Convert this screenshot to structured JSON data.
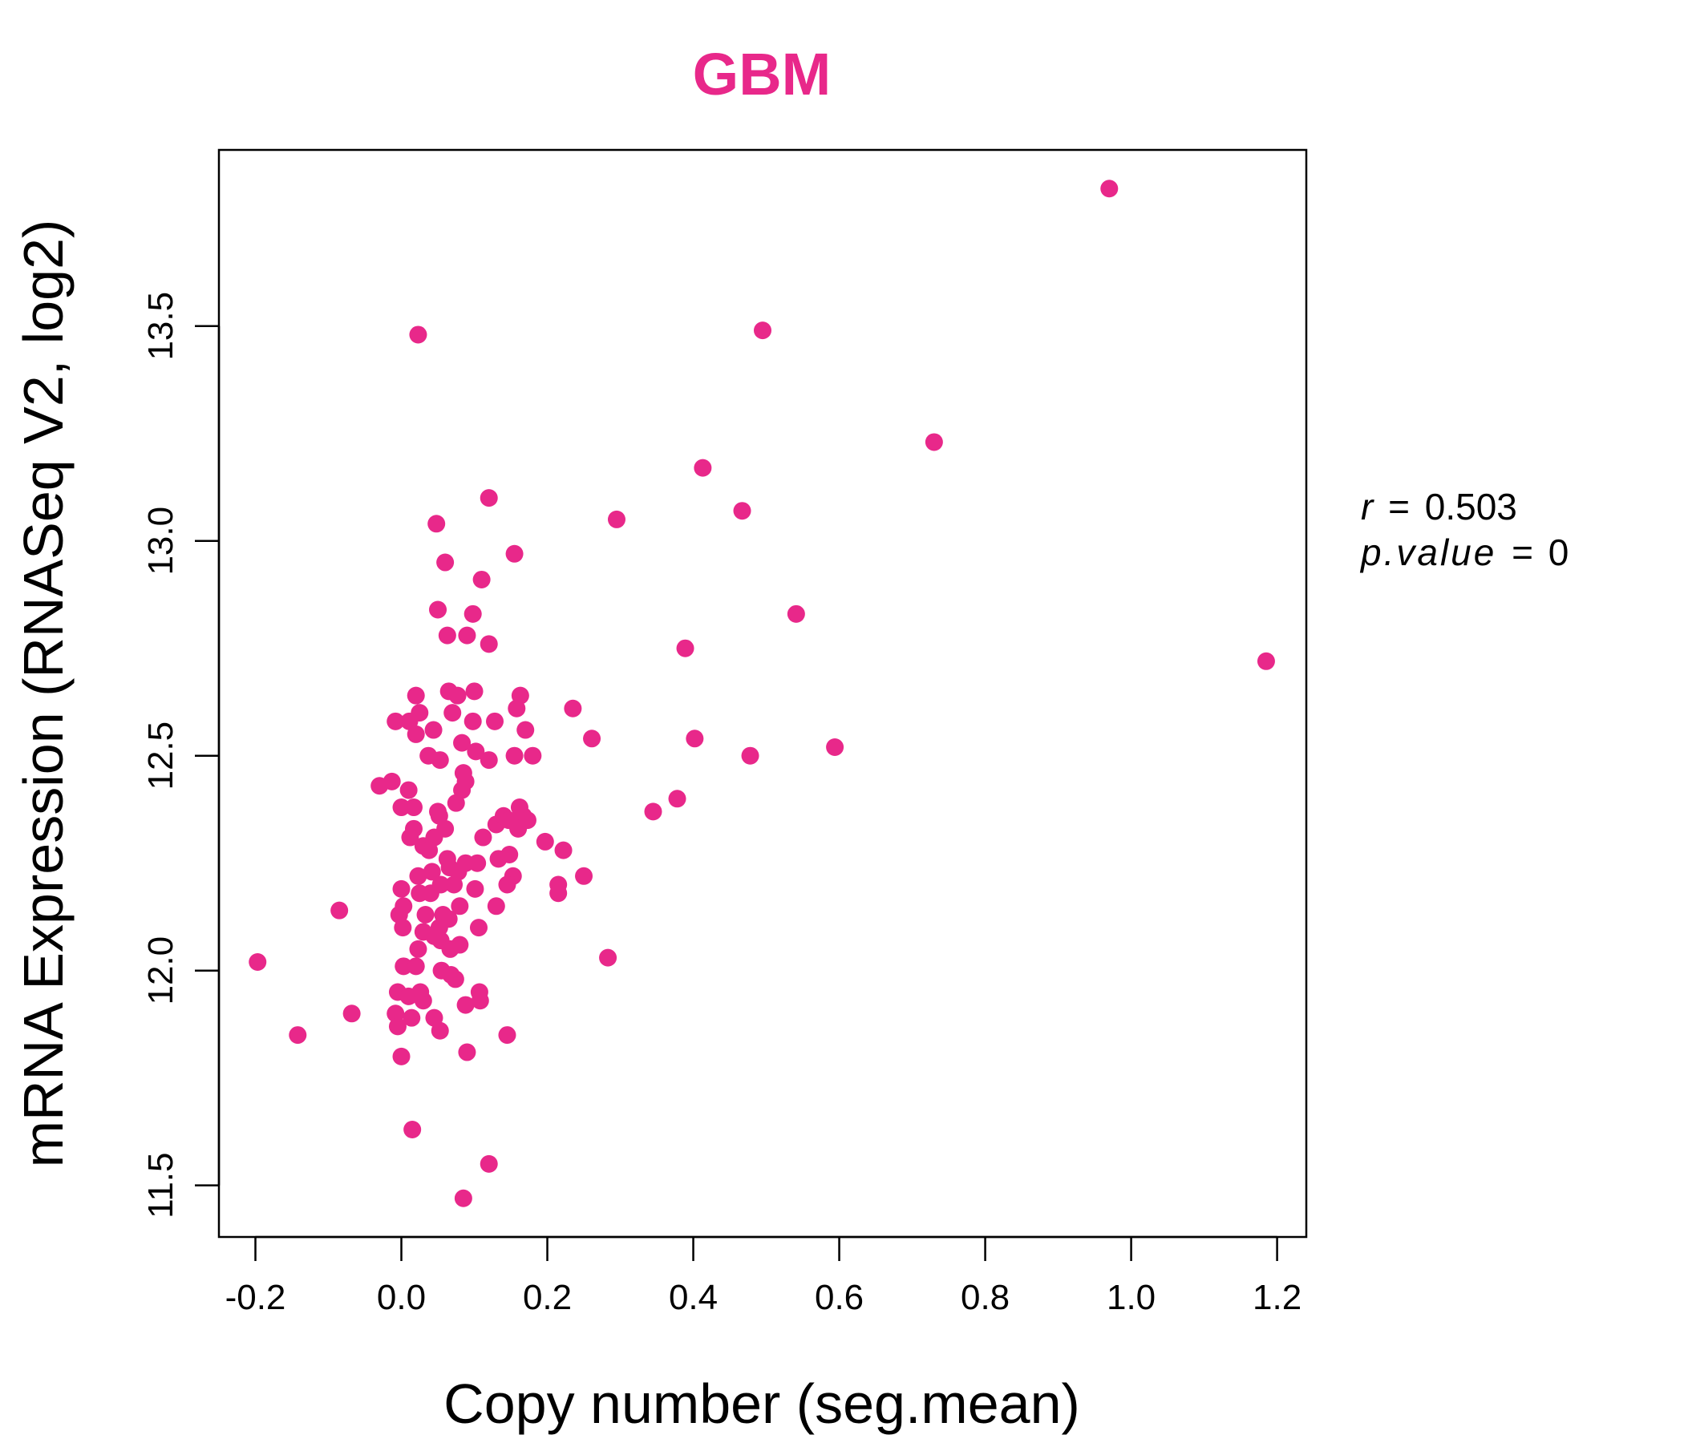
{
  "chart_data": {
    "type": "scatter",
    "title": "GBM",
    "xlabel": "Copy number (seg.mean)",
    "ylabel": "mRNA Expression (RNASeq V2, log2)",
    "xlim": [
      -0.25,
      1.24
    ],
    "ylim": [
      11.38,
      13.91
    ],
    "xticks": [
      -0.2,
      0.0,
      0.2,
      0.4,
      0.6,
      0.8,
      1.0,
      1.2
    ],
    "xtick_labels": [
      "-0.2",
      "0.0",
      "0.2",
      "0.4",
      "0.6",
      "0.8",
      "1.0",
      "1.2"
    ],
    "yticks": [
      11.5,
      12.0,
      12.5,
      13.0,
      13.5
    ],
    "ytick_labels": [
      "11.5",
      "12.0",
      "12.5",
      "13.0",
      "13.5"
    ],
    "grid": false,
    "point_color": "#E8288A",
    "annotations": {
      "r_name": "r",
      "r_value": "0.503",
      "p_name": "p.value",
      "p_value": "0",
      "equals": "="
    },
    "points": [
      [
        0.97,
        13.82
      ],
      [
        0.023,
        13.48
      ],
      [
        0.495,
        13.49
      ],
      [
        0.73,
        13.23
      ],
      [
        0.413,
        13.17
      ],
      [
        0.467,
        13.07
      ],
      [
        0.295,
        13.05
      ],
      [
        0.12,
        13.1
      ],
      [
        0.048,
        13.04
      ],
      [
        0.155,
        12.97
      ],
      [
        0.06,
        12.95
      ],
      [
        0.11,
        12.91
      ],
      [
        0.05,
        12.84
      ],
      [
        0.098,
        12.83
      ],
      [
        0.541,
        12.83
      ],
      [
        0.063,
        12.78
      ],
      [
        0.09,
        12.78
      ],
      [
        0.12,
        12.76
      ],
      [
        0.389,
        12.75
      ],
      [
        1.185,
        12.72
      ],
      [
        0.02,
        12.64
      ],
      [
        0.065,
        12.65
      ],
      [
        0.1,
        12.65
      ],
      [
        0.077,
        12.64
      ],
      [
        0.163,
        12.64
      ],
      [
        0.235,
        12.61
      ],
      [
        0.025,
        12.6
      ],
      [
        0.07,
        12.6
      ],
      [
        0.158,
        12.61
      ],
      [
        -0.008,
        12.58
      ],
      [
        0.011,
        12.58
      ],
      [
        0.098,
        12.58
      ],
      [
        0.128,
        12.58
      ],
      [
        0.044,
        12.56
      ],
      [
        0.17,
        12.56
      ],
      [
        0.02,
        12.55
      ],
      [
        0.261,
        12.54
      ],
      [
        0.402,
        12.54
      ],
      [
        0.594,
        12.52
      ],
      [
        0.083,
        12.53
      ],
      [
        0.102,
        12.51
      ],
      [
        0.037,
        12.5
      ],
      [
        0.053,
        12.49
      ],
      [
        0.12,
        12.49
      ],
      [
        0.155,
        12.5
      ],
      [
        0.18,
        12.5
      ],
      [
        0.478,
        12.5
      ],
      [
        0.085,
        12.46
      ],
      [
        0.088,
        12.44
      ],
      [
        -0.03,
        12.43
      ],
      [
        -0.013,
        12.44
      ],
      [
        0.01,
        12.42
      ],
      [
        0.083,
        12.42
      ],
      [
        0.075,
        12.39
      ],
      [
        0.0,
        12.38
      ],
      [
        0.017,
        12.38
      ],
      [
        0.05,
        12.37
      ],
      [
        0.052,
        12.36
      ],
      [
        0.378,
        12.4
      ],
      [
        0.345,
        12.37
      ],
      [
        0.13,
        12.34
      ],
      [
        0.14,
        12.36
      ],
      [
        0.147,
        12.35
      ],
      [
        0.162,
        12.38
      ],
      [
        0.167,
        12.36
      ],
      [
        0.173,
        12.35
      ],
      [
        0.16,
        12.33
      ],
      [
        0.017,
        12.33
      ],
      [
        0.06,
        12.33
      ],
      [
        0.012,
        12.31
      ],
      [
        0.045,
        12.31
      ],
      [
        0.112,
        12.31
      ],
      [
        0.197,
        12.3
      ],
      [
        0.03,
        12.29
      ],
      [
        0.038,
        12.28
      ],
      [
        0.222,
        12.28
      ],
      [
        0.133,
        12.26
      ],
      [
        0.148,
        12.27
      ],
      [
        0.063,
        12.26
      ],
      [
        0.066,
        12.24
      ],
      [
        0.088,
        12.25
      ],
      [
        0.104,
        12.25
      ],
      [
        0.042,
        12.23
      ],
      [
        0.078,
        12.23
      ],
      [
        0.023,
        12.22
      ],
      [
        0.153,
        12.22
      ],
      [
        0.25,
        12.22
      ],
      [
        0.054,
        12.2
      ],
      [
        0.072,
        12.2
      ],
      [
        0.101,
        12.19
      ],
      [
        0.145,
        12.2
      ],
      [
        0.215,
        12.2
      ],
      [
        0.215,
        12.18
      ],
      [
        0.0,
        12.19
      ],
      [
        0.025,
        12.18
      ],
      [
        0.04,
        12.18
      ],
      [
        0.003,
        12.15
      ],
      [
        0.08,
        12.15
      ],
      [
        0.13,
        12.15
      ],
      [
        -0.085,
        12.14
      ],
      [
        -0.003,
        12.13
      ],
      [
        0.033,
        12.13
      ],
      [
        0.057,
        12.13
      ],
      [
        0.065,
        12.12
      ],
      [
        0.002,
        12.1
      ],
      [
        0.052,
        12.1
      ],
      [
        0.106,
        12.1
      ],
      [
        0.03,
        12.09
      ],
      [
        0.045,
        12.08
      ],
      [
        0.054,
        12.07
      ],
      [
        0.08,
        12.06
      ],
      [
        0.023,
        12.05
      ],
      [
        0.067,
        12.05
      ],
      [
        0.283,
        12.03
      ],
      [
        -0.197,
        12.02
      ],
      [
        0.003,
        12.01
      ],
      [
        0.02,
        12.01
      ],
      [
        0.055,
        12.0
      ],
      [
        0.068,
        11.99
      ],
      [
        0.074,
        11.98
      ],
      [
        -0.005,
        11.95
      ],
      [
        0.01,
        11.94
      ],
      [
        0.026,
        11.95
      ],
      [
        0.03,
        11.93
      ],
      [
        0.107,
        11.95
      ],
      [
        0.108,
        11.93
      ],
      [
        0.088,
        11.92
      ],
      [
        -0.068,
        11.9
      ],
      [
        -0.008,
        11.9
      ],
      [
        0.014,
        11.89
      ],
      [
        0.045,
        11.89
      ],
      [
        -0.005,
        11.87
      ],
      [
        0.053,
        11.86
      ],
      [
        -0.142,
        11.85
      ],
      [
        0.145,
        11.85
      ],
      [
        0.0,
        11.8
      ],
      [
        0.09,
        11.81
      ],
      [
        0.015,
        11.63
      ],
      [
        0.12,
        11.55
      ],
      [
        0.085,
        11.47
      ]
    ]
  }
}
